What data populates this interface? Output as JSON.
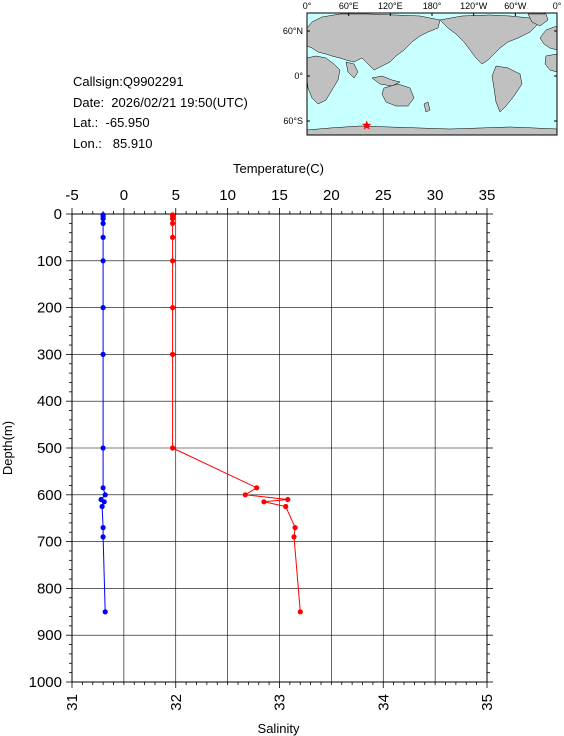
{
  "station": {
    "callsign": "Callsign:Q9902291",
    "date": "Date:  2026/02/21 19:50(UTC)",
    "lat": "Lat.:  -65.950",
    "lon": "Lon.:   85.910"
  },
  "map": {
    "top_ticks": [
      "0°",
      "60°E",
      "120°E",
      "180°",
      "120°W",
      "60°W",
      "0°"
    ],
    "left_ticks": [
      "60°N",
      "0°",
      "60°S"
    ],
    "ocean_color": "#c8ffff",
    "land_color": "#c0c0c0",
    "marker": {
      "symbol": "star",
      "lon": 85.91,
      "lat": -65.95,
      "color": "#ff0000"
    }
  },
  "chart_data": {
    "type": "line",
    "top_axis": {
      "label": "Temperature(C)",
      "range": [
        -5,
        35
      ],
      "ticks": [
        "-5",
        "0",
        "5",
        "10",
        "15",
        "20",
        "25",
        "30",
        "35"
      ]
    },
    "bottom_axis": {
      "label": "Salinity",
      "range": [
        31,
        35
      ],
      "ticks": [
        "31",
        "32",
        "33",
        "34",
        "35"
      ]
    },
    "y_axis": {
      "label": "Depth(m)",
      "range": [
        0,
        1000
      ],
      "inverted": true,
      "ticks": [
        "0",
        "100",
        "200",
        "300",
        "400",
        "500",
        "600",
        "700",
        "800",
        "900",
        "1000"
      ]
    },
    "grid": true,
    "series": [
      {
        "axis": "top",
        "color": "#ff0000",
        "points": [
          {
            "v": 4.7,
            "depth": 2
          },
          {
            "v": 4.7,
            "depth": 5
          },
          {
            "v": 4.7,
            "depth": 10
          },
          {
            "v": 4.7,
            "depth": 20
          },
          {
            "v": 4.7,
            "depth": 50
          },
          {
            "v": 4.7,
            "depth": 100
          },
          {
            "v": 4.7,
            "depth": 200
          },
          {
            "v": 4.7,
            "depth": 300
          },
          {
            "v": 4.7,
            "depth": 500
          },
          {
            "v": 12.8,
            "depth": 585
          },
          {
            "v": 11.7,
            "depth": 600
          },
          {
            "v": 15.8,
            "depth": 610
          },
          {
            "v": 13.5,
            "depth": 615
          },
          {
            "v": 15.6,
            "depth": 625
          },
          {
            "v": 16.5,
            "depth": 670
          },
          {
            "v": 16.4,
            "depth": 690
          },
          {
            "v": 17.0,
            "depth": 850
          }
        ]
      },
      {
        "axis": "bottom",
        "color": "#0000ff",
        "points": [
          {
            "v": 31.3,
            "depth": 2
          },
          {
            "v": 31.3,
            "depth": 5
          },
          {
            "v": 31.3,
            "depth": 10
          },
          {
            "v": 31.3,
            "depth": 20
          },
          {
            "v": 31.3,
            "depth": 50
          },
          {
            "v": 31.3,
            "depth": 100
          },
          {
            "v": 31.3,
            "depth": 200
          },
          {
            "v": 31.3,
            "depth": 300
          },
          {
            "v": 31.3,
            "depth": 500
          },
          {
            "v": 31.3,
            "depth": 585
          },
          {
            "v": 31.32,
            "depth": 600
          },
          {
            "v": 31.28,
            "depth": 610
          },
          {
            "v": 31.31,
            "depth": 615
          },
          {
            "v": 31.29,
            "depth": 625
          },
          {
            "v": 31.3,
            "depth": 670
          },
          {
            "v": 31.3,
            "depth": 690
          },
          {
            "v": 31.32,
            "depth": 850
          }
        ]
      }
    ]
  }
}
